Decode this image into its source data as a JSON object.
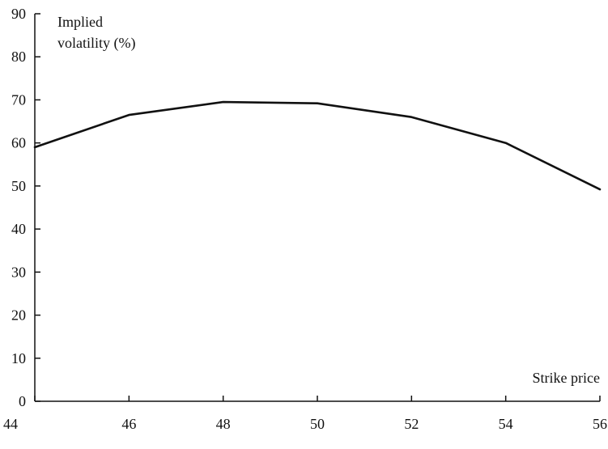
{
  "chart_data": {
    "type": "line",
    "title": "",
    "ylabel_lines": [
      "Implied",
      "volatility (%)"
    ],
    "xlabel": "Strike price",
    "xlim": [
      44,
      56
    ],
    "ylim": [
      0,
      90
    ],
    "x_ticks": [
      44,
      46,
      48,
      50,
      52,
      54,
      56
    ],
    "y_ticks": [
      0,
      10,
      20,
      30,
      40,
      50,
      60,
      70,
      80,
      90
    ],
    "grid": false,
    "series": [
      {
        "x": [
          44,
          46,
          48,
          50,
          52,
          54,
          56
        ],
        "y": [
          59,
          66.5,
          69.5,
          69.2,
          66,
          60,
          49.2
        ]
      }
    ],
    "colors": {
      "line": "#111111",
      "axis": "#111111",
      "background": "#ffffff"
    }
  }
}
